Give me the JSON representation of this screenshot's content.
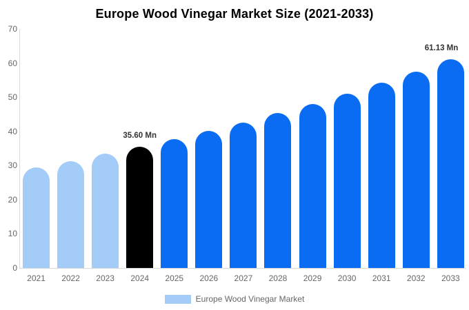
{
  "title": "Europe Wood Vinegar Market Size (2021-2033)",
  "legend": {
    "label": "Europe Wood Vinegar Market",
    "swatch_color": "#a3ccf8"
  },
  "colors": {
    "historical_bar": "#a3ccf8",
    "base_year_bar": "#000000",
    "forecast_bar": "#0a6cf2",
    "axis_line": "#d9d9d9",
    "tick_label": "#666666",
    "data_label": "#333333",
    "title_text": "#000000",
    "background": "#ffffff"
  },
  "chart_data": {
    "type": "bar",
    "title": "Europe Wood Vinegar Market Size (2021-2033)",
    "categories": [
      "2021",
      "2022",
      "2023",
      "2024",
      "2025",
      "2026",
      "2027",
      "2028",
      "2029",
      "2030",
      "2031",
      "2032",
      "2033"
    ],
    "values": [
      29.4,
      31.3,
      33.4,
      35.6,
      37.8,
      40.1,
      42.6,
      45.3,
      48.1,
      51.0,
      54.2,
      57.5,
      61.13
    ],
    "data_labels": [
      "",
      "",
      "",
      "35.60 Mn",
      "",
      "",
      "",
      "",
      "",
      "",
      "",
      "",
      "61.13 Mn"
    ],
    "bar_color_keys": [
      "historical_bar",
      "historical_bar",
      "historical_bar",
      "base_year_bar",
      "forecast_bar",
      "forecast_bar",
      "forecast_bar",
      "forecast_bar",
      "forecast_bar",
      "forecast_bar",
      "forecast_bar",
      "forecast_bar",
      "forecast_bar"
    ],
    "unit": "Mn",
    "xlabel": "",
    "ylabel": "",
    "ylim": [
      0,
      70
    ],
    "yticks": [
      0,
      10,
      20,
      30,
      40,
      50,
      60,
      70
    ],
    "grid": false,
    "legend_position": "bottom",
    "legend_entries": [
      "Europe Wood Vinegar Market"
    ]
  }
}
